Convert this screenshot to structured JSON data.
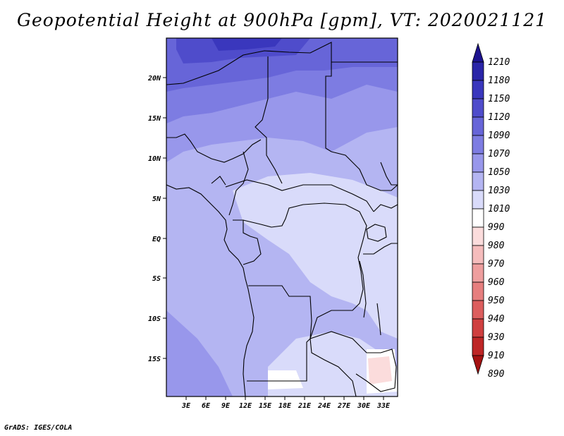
{
  "title": "Geopotential Height at 900hPa [gpm], VT: 2020021121",
  "footer": "GrADS: IGES/COLA",
  "lat_labels": [
    "20N",
    "15N",
    "10N",
    "5N",
    "EQ",
    "5S",
    "10S",
    "15S"
  ],
  "lon_labels": [
    "3E",
    "6E",
    "9E",
    "12E",
    "15E",
    "18E",
    "21E",
    "24E",
    "27E",
    "30E",
    "33E"
  ],
  "colorbar": {
    "labels": [
      "1210",
      "1180",
      "1150",
      "1120",
      "1090",
      "1070",
      "1050",
      "1030",
      "1010",
      "990",
      "980",
      "970",
      "960",
      "950",
      "940",
      "930",
      "910",
      "890"
    ],
    "colors": [
      "#1d138f",
      "#2a25a8",
      "#3a37bd",
      "#4f4ccb",
      "#6765d8",
      "#7d7ce2",
      "#9897eb",
      "#b4b5f2",
      "#d9dbfa",
      "#ffffff",
      "#fbdcdc",
      "#f5bcbc",
      "#ee9e9e",
      "#e67e7e",
      "#dc5e5e",
      "#cf3f3f",
      "#be2626",
      "#a51212"
    ]
  },
  "map": {
    "region": "Central Africa",
    "lon_range": [
      0,
      35
    ],
    "lat_range": [
      -20,
      24.5
    ]
  }
}
